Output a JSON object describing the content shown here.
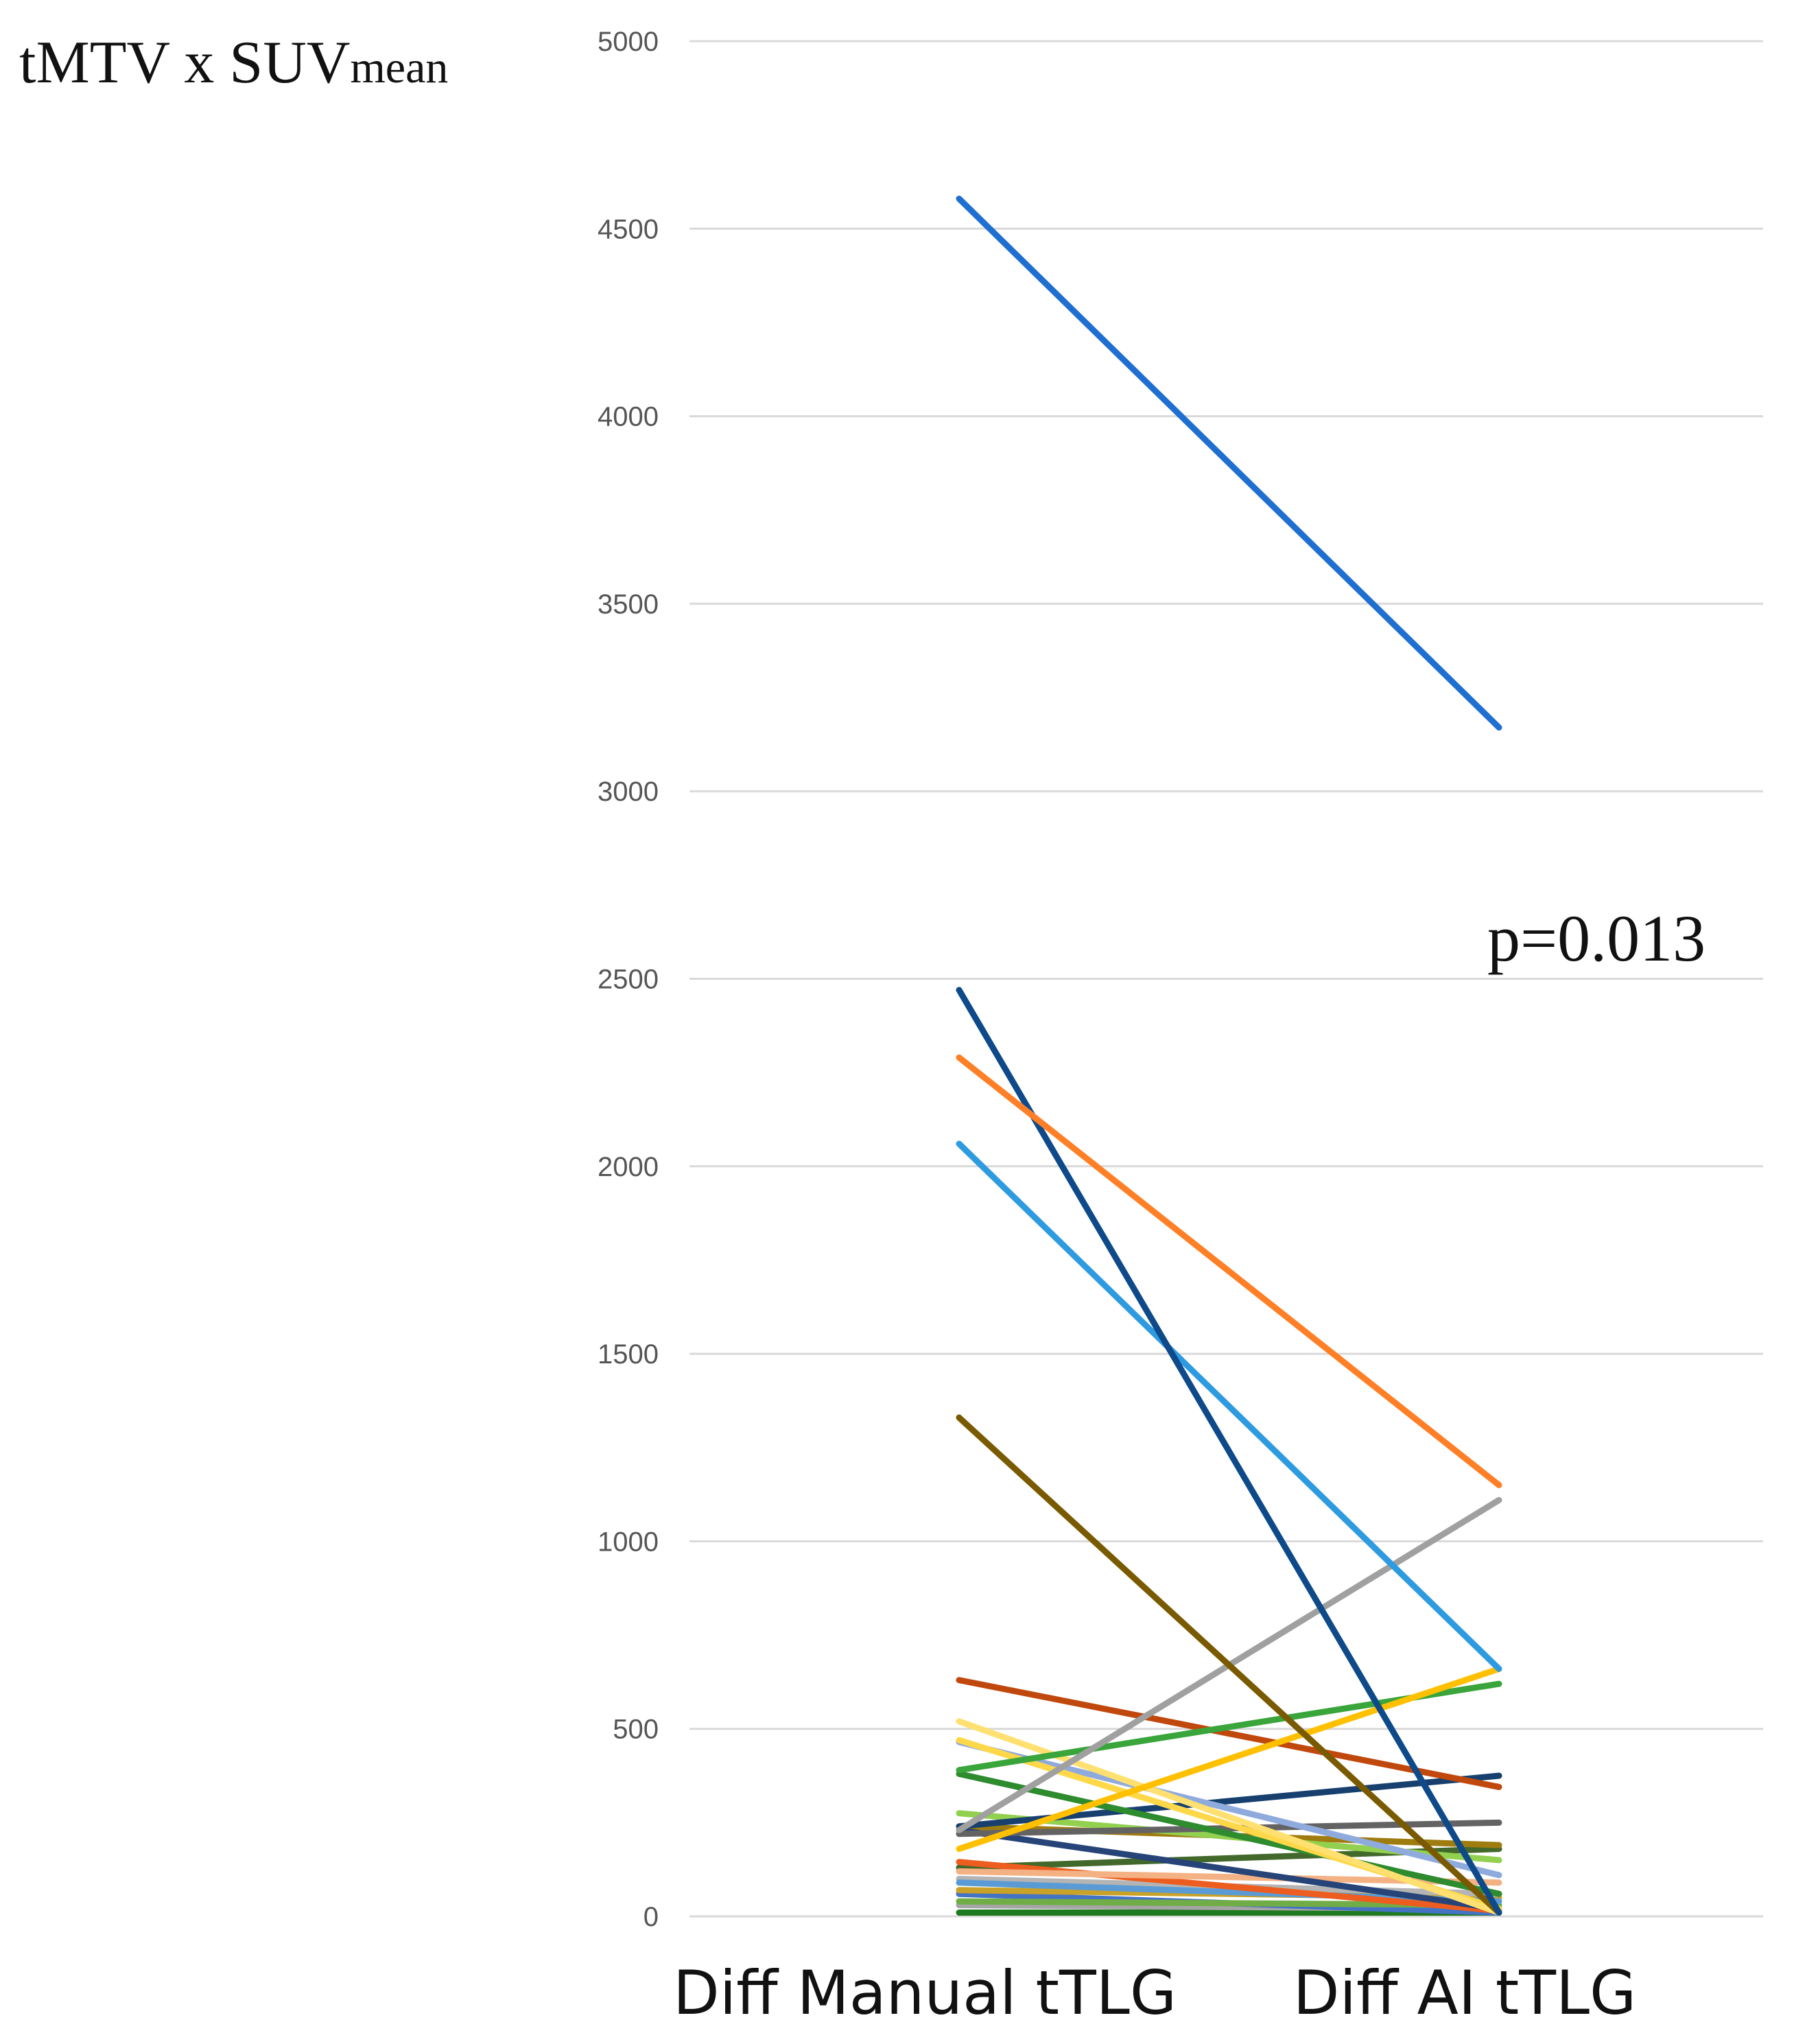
{
  "chart_data": {
    "type": "line",
    "ylabel": {
      "main": "tMTV x SUV",
      "sub": "mean"
    },
    "annotation": "p=0.013",
    "categories": [
      "Diff Manual tTLG",
      "Diff AI tTLG"
    ],
    "ylim": [
      0,
      5000
    ],
    "yticks": [
      0,
      500,
      1000,
      1500,
      2000,
      2500,
      3000,
      3500,
      4000,
      4500,
      5000
    ],
    "grid": true,
    "legend": "none",
    "series": [
      {
        "color": "#1f6fd1",
        "values": [
          4580,
          3170
        ]
      },
      {
        "color": "#ff7f27",
        "values": [
          2290,
          1150
        ]
      },
      {
        "color": "#0e4a8a",
        "values": [
          2470,
          10
        ]
      },
      {
        "color": "#2e9be0",
        "values": [
          2060,
          660
        ]
      },
      {
        "color": "#7a5a00",
        "values": [
          1330,
          10
        ]
      },
      {
        "color": "#a0a0a0",
        "values": [
          230,
          1110
        ]
      },
      {
        "color": "#ffc000",
        "values": [
          180,
          660
        ]
      },
      {
        "color": "#3aa53a",
        "values": [
          390,
          620
        ]
      },
      {
        "color": "#c0480d",
        "values": [
          630,
          345
        ]
      },
      {
        "color": "#ffe070",
        "values": [
          520,
          10
        ]
      },
      {
        "color": "#ffd84a",
        "values": [
          470,
          20
        ]
      },
      {
        "color": "#8faadc",
        "values": [
          465,
          110
        ]
      },
      {
        "color": "#2e8b2e",
        "values": [
          380,
          60
        ]
      },
      {
        "color": "#17406e",
        "values": [
          240,
          375
        ]
      },
      {
        "color": "#636363",
        "values": [
          220,
          250
        ]
      },
      {
        "color": "#92d050",
        "values": [
          275,
          150
        ]
      },
      {
        "color": "#264478",
        "values": [
          230,
          20
        ]
      },
      {
        "color": "#9e7c0f",
        "values": [
          240,
          190
        ]
      },
      {
        "color": "#f4b183",
        "values": [
          120,
          90
        ]
      },
      {
        "color": "#ed5d1f",
        "values": [
          145,
          15
        ]
      },
      {
        "color": "#43682b",
        "values": [
          130,
          180
        ]
      },
      {
        "color": "#5b9bd5",
        "values": [
          90,
          40
        ]
      },
      {
        "color": "#b4b4b4",
        "values": [
          100,
          60
        ]
      },
      {
        "color": "#c9a227",
        "values": [
          70,
          50
        ]
      },
      {
        "color": "#70ad47",
        "values": [
          40,
          30
        ]
      },
      {
        "color": "#4472c4",
        "values": [
          60,
          10
        ]
      },
      {
        "color": "#a5a5a5",
        "values": [
          30,
          20
        ]
      },
      {
        "color": "#1e7a1e",
        "values": [
          10,
          10
        ]
      }
    ]
  }
}
